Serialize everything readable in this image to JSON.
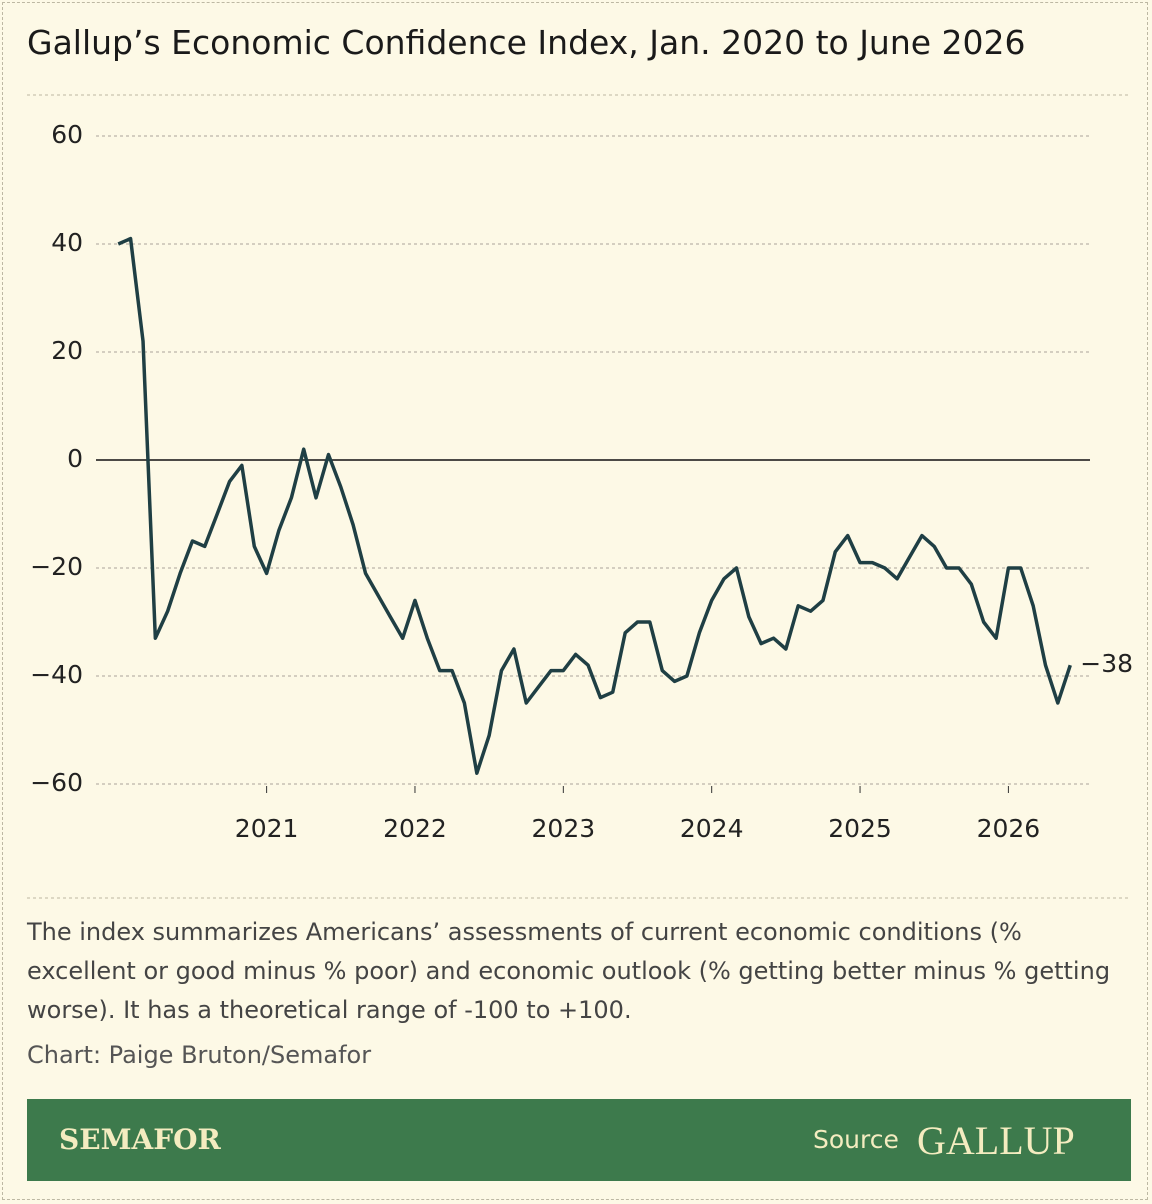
{
  "chart_data": {
    "type": "line",
    "title": "Gallup’s Economic Confidence Index, Jan. 2020 to June 2026",
    "note": "The index summarizes Americans’ assessments of current economic conditions (% excellent or good minus % poor) and economic outlook (% getting better minus % getting worse). It has a theoretical range of -100 to +100.",
    "credit": "Chart: Paige Bruton/Semafor",
    "footer": {
      "brand": "SEMAFOR",
      "source_label": "Source",
      "source": "GALLUP"
    },
    "x": [
      2020,
      2020.083,
      2020.167,
      2020.25,
      2020.333,
      2020.417,
      2020.5,
      2020.583,
      2020.667,
      2020.75,
      2020.833,
      2020.917,
      2021,
      2021.083,
      2021.167,
      2021.25,
      2021.333,
      2021.417,
      2021.5,
      2021.583,
      2021.667,
      2021.75,
      2021.833,
      2021.917,
      2022,
      2022.083,
      2022.167,
      2022.25,
      2022.333,
      2022.417,
      2022.5,
      2022.583,
      2022.667,
      2022.75,
      2022.833,
      2022.917,
      2023,
      2023.083,
      2023.167,
      2023.25,
      2023.333,
      2023.417,
      2023.5,
      2023.583,
      2023.667,
      2023.75,
      2023.833,
      2023.917,
      2024,
      2024.083,
      2024.167,
      2024.25,
      2024.333,
      2024.417,
      2024.5,
      2024.583,
      2024.667,
      2024.75,
      2024.833,
      2024.917,
      2025,
      2025.083,
      2025.167,
      2025.25,
      2025.333,
      2025.417,
      2025.5,
      2025.583,
      2025.667,
      2025.75,
      2025.833,
      2025.917,
      2026,
      2026.083,
      2026.167,
      2026.25,
      2026.333,
      2026.417
    ],
    "series": [
      {
        "color": "#1f3f44",
        "values": [
          40,
          41,
          22,
          -33,
          -28,
          -21,
          -15,
          -16,
          -10,
          -4,
          -1,
          -16,
          -21,
          -13,
          -7,
          2,
          -7,
          1,
          -5,
          -12,
          -21,
          -25,
          -29,
          -33,
          -26,
          -33,
          -39,
          -39,
          -45,
          -58,
          -51,
          -39,
          -35,
          -45,
          -42,
          -39,
          -39,
          -36,
          -38,
          -44,
          -43,
          -32,
          -30,
          -30,
          -39,
          -41,
          -40,
          -32,
          -26,
          -22,
          -20,
          -29,
          -34,
          -33,
          -35,
          -27,
          -28,
          -26,
          -17,
          -14,
          -19,
          -19,
          -20,
          -22,
          -18,
          -14,
          -16,
          -20,
          -20,
          -23,
          -30,
          -33,
          -20,
          -20,
          -27,
          -38,
          -45,
          -38
        ]
      }
    ],
    "annotations": [
      {
        "x": 2026.417,
        "y": -38,
        "label": "−38"
      }
    ],
    "xlim": [
      2019.85,
      2026.55
    ],
    "xticks": [
      2021,
      2022,
      2023,
      2024,
      2025,
      2026
    ],
    "ylim": [
      -60,
      60
    ],
    "yticks": [
      {
        "value": -60,
        "label": "−60"
      },
      {
        "value": -40,
        "label": "−40"
      },
      {
        "value": -20,
        "label": "−20"
      },
      0,
      20,
      40,
      60
    ],
    "grid": true
  }
}
